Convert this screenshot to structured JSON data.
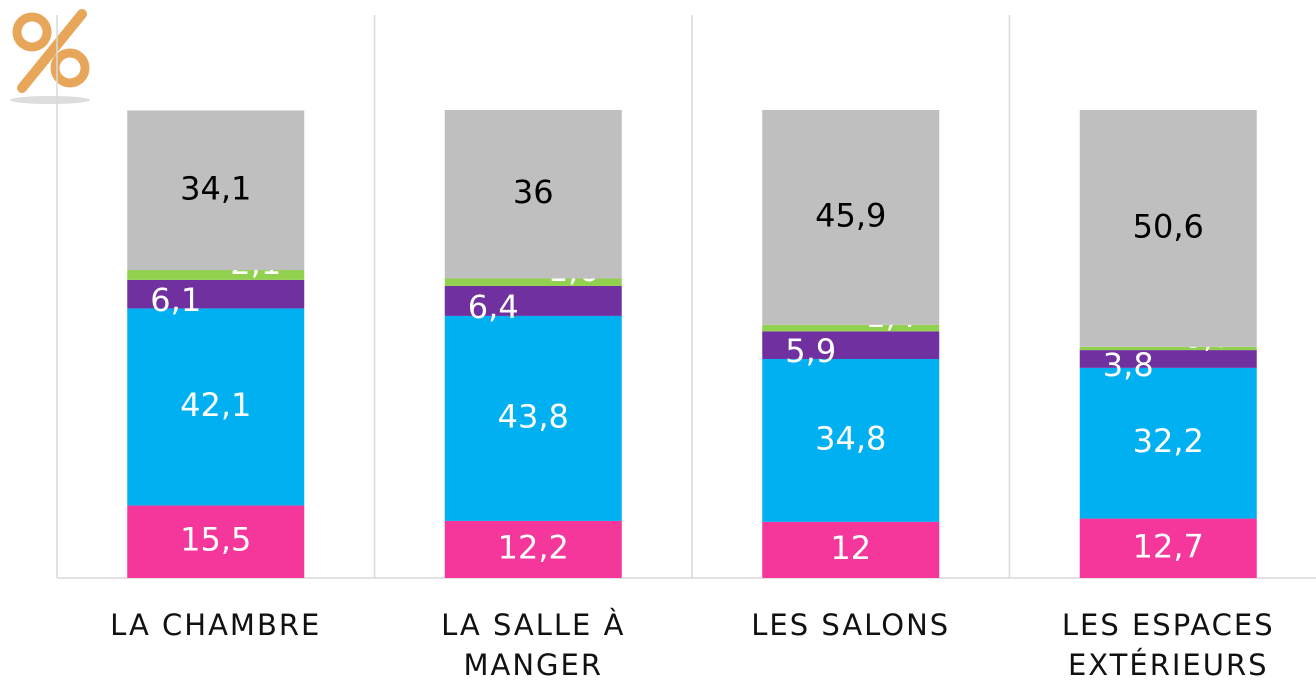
{
  "chart_data": {
    "type": "stacked_bar",
    "categories": [
      "LA CHAMBRE",
      "LA SALLE À MANGER",
      "LES SALONS",
      "LES ESPACES EXTÉRIEURS"
    ],
    "series": [
      {
        "color": "#f5379b",
        "values": [
          15.5,
          12.2,
          12,
          12.7
        ],
        "value_labels": [
          "15,5",
          "12,2",
          "12",
          "12,7"
        ]
      },
      {
        "color": "#00b0f0",
        "values": [
          42.1,
          43.8,
          34.8,
          32.2
        ],
        "value_labels": [
          "42,1",
          "43,8",
          "34,8",
          "32,2"
        ]
      },
      {
        "color": "#7030a0",
        "values": [
          6.1,
          6.4,
          5.9,
          3.8
        ],
        "value_labels": [
          "6,1",
          "6,4",
          "5,9",
          "3,8"
        ]
      },
      {
        "color": "#92d050",
        "values": [
          2.1,
          1.6,
          1.4,
          0.7
        ],
        "value_labels": [
          "2,1",
          "1,6",
          "1,4",
          "0,7"
        ]
      },
      {
        "color": "#bfbfbf",
        "values": [
          34.1,
          36,
          45.9,
          50.6
        ],
        "value_labels": [
          "34,1",
          "36",
          "45,9",
          "50,6"
        ]
      }
    ],
    "ylim": [
      0,
      100
    ]
  }
}
